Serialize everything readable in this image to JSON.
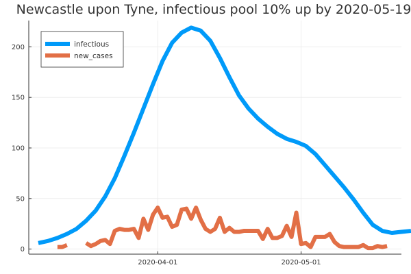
{
  "chart_data": {
    "type": "line",
    "title": "Newcastle upon Tyne, infectious pool 10% up by 2020-05-19",
    "xlabel": "",
    "ylabel": "",
    "x_range": [
      "2020-03-05",
      "2020-05-22"
    ],
    "ylim": [
      -5,
      226
    ],
    "x_ticks": [
      {
        "date": "2020-04-01",
        "label": "2020-04-01"
      },
      {
        "date": "2020-05-01",
        "label": "2020-05-01"
      }
    ],
    "y_ticks": [
      0,
      50,
      100,
      150,
      200
    ],
    "grid": true,
    "legend": {
      "position": "top-left"
    },
    "series": [
      {
        "name": "infectious",
        "color": "#009af9",
        "points": [
          [
            "2020-03-07",
            6
          ],
          [
            "2020-03-09",
            8
          ],
          [
            "2020-03-11",
            11
          ],
          [
            "2020-03-13",
            15
          ],
          [
            "2020-03-15",
            20
          ],
          [
            "2020-03-17",
            28
          ],
          [
            "2020-03-19",
            38
          ],
          [
            "2020-03-21",
            52
          ],
          [
            "2020-03-23",
            70
          ],
          [
            "2020-03-25",
            92
          ],
          [
            "2020-03-27",
            115
          ],
          [
            "2020-03-29",
            139
          ],
          [
            "2020-03-31",
            163
          ],
          [
            "2020-04-02",
            186
          ],
          [
            "2020-04-04",
            204
          ],
          [
            "2020-04-06",
            214
          ],
          [
            "2020-04-08",
            219
          ],
          [
            "2020-04-10",
            216
          ],
          [
            "2020-04-12",
            206
          ],
          [
            "2020-04-14",
            189
          ],
          [
            "2020-04-16",
            170
          ],
          [
            "2020-04-18",
            152
          ],
          [
            "2020-04-20",
            139
          ],
          [
            "2020-04-22",
            129
          ],
          [
            "2020-04-24",
            121
          ],
          [
            "2020-04-26",
            114
          ],
          [
            "2020-04-28",
            109
          ],
          [
            "2020-04-30",
            106
          ],
          [
            "2020-05-02",
            102
          ],
          [
            "2020-05-04",
            94
          ],
          [
            "2020-05-06",
            83
          ],
          [
            "2020-05-08",
            72
          ],
          [
            "2020-05-10",
            61
          ],
          [
            "2020-05-12",
            49
          ],
          [
            "2020-05-14",
            36
          ],
          [
            "2020-05-16",
            24
          ],
          [
            "2020-05-18",
            18
          ],
          [
            "2020-05-20",
            16
          ],
          [
            "2020-05-22",
            17
          ],
          [
            "2020-05-24",
            18
          ]
        ]
      },
      {
        "name": "new_cases",
        "color": "#e26f46",
        "points": [
          [
            "2020-03-11",
            2
          ],
          [
            "2020-03-12",
            2
          ],
          [
            "2020-03-13",
            4
          ],
          [
            "2020-03-14",
            null
          ],
          [
            "2020-03-15",
            null
          ],
          [
            "2020-03-16",
            null
          ],
          [
            "2020-03-17",
            6
          ],
          [
            "2020-03-18",
            3
          ],
          [
            "2020-03-19",
            5
          ],
          [
            "2020-03-20",
            8
          ],
          [
            "2020-03-21",
            9
          ],
          [
            "2020-03-22",
            5
          ],
          [
            "2020-03-23",
            18
          ],
          [
            "2020-03-24",
            20
          ],
          [
            "2020-03-25",
            19
          ],
          [
            "2020-03-26",
            19
          ],
          [
            "2020-03-27",
            20
          ],
          [
            "2020-03-28",
            11
          ],
          [
            "2020-03-29",
            30
          ],
          [
            "2020-03-30",
            19
          ],
          [
            "2020-03-31",
            34
          ],
          [
            "2020-04-01",
            41
          ],
          [
            "2020-04-02",
            31
          ],
          [
            "2020-04-03",
            32
          ],
          [
            "2020-04-04",
            22
          ],
          [
            "2020-04-05",
            24
          ],
          [
            "2020-04-06",
            39
          ],
          [
            "2020-04-07",
            40
          ],
          [
            "2020-04-08",
            30
          ],
          [
            "2020-04-09",
            41
          ],
          [
            "2020-04-10",
            29
          ],
          [
            "2020-04-11",
            20
          ],
          [
            "2020-04-12",
            17
          ],
          [
            "2020-04-13",
            20
          ],
          [
            "2020-04-14",
            31
          ],
          [
            "2020-04-15",
            17
          ],
          [
            "2020-04-16",
            21
          ],
          [
            "2020-04-17",
            17
          ],
          [
            "2020-04-18",
            17
          ],
          [
            "2020-04-19",
            18
          ],
          [
            "2020-04-20",
            18
          ],
          [
            "2020-04-21",
            18
          ],
          [
            "2020-04-22",
            18
          ],
          [
            "2020-04-23",
            10
          ],
          [
            "2020-04-24",
            20
          ],
          [
            "2020-04-25",
            11
          ],
          [
            "2020-04-26",
            11
          ],
          [
            "2020-04-27",
            13
          ],
          [
            "2020-04-28",
            23
          ],
          [
            "2020-04-29",
            12
          ],
          [
            "2020-04-30",
            36
          ],
          [
            "2020-05-01",
            5
          ],
          [
            "2020-05-02",
            6
          ],
          [
            "2020-05-03",
            2
          ],
          [
            "2020-05-04",
            12
          ],
          [
            "2020-05-05",
            12
          ],
          [
            "2020-05-06",
            12
          ],
          [
            "2020-05-07",
            15
          ],
          [
            "2020-05-08",
            7
          ],
          [
            "2020-05-09",
            3
          ],
          [
            "2020-05-10",
            2
          ],
          [
            "2020-05-11",
            2
          ],
          [
            "2020-05-12",
            2
          ],
          [
            "2020-05-13",
            2
          ],
          [
            "2020-05-14",
            4
          ],
          [
            "2020-05-15",
            1
          ],
          [
            "2020-05-16",
            1
          ],
          [
            "2020-05-17",
            3
          ],
          [
            "2020-05-18",
            2
          ],
          [
            "2020-05-19",
            3
          ]
        ]
      }
    ]
  }
}
